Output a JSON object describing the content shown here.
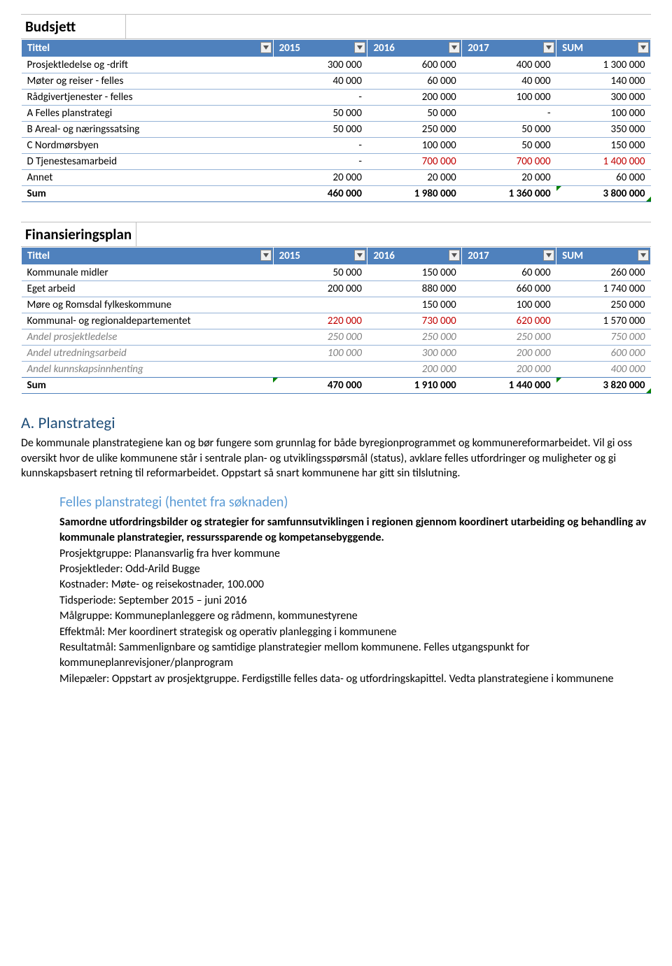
{
  "budget_table": {
    "title": "Budsjett",
    "columns": [
      "Tittel",
      "2015",
      "2016",
      "2017",
      "SUM"
    ],
    "col_pct": [
      "40%",
      "15%",
      "15%",
      "15%",
      "15%"
    ],
    "header_bg": "#4f81bd",
    "header_fg": "#ffffff",
    "row_border": "#95b3d7",
    "rows": [
      {
        "cells": [
          "Prosjektledelse og -drift",
          "300 000",
          "600 000",
          "400 000",
          "1 300 000"
        ]
      },
      {
        "cells": [
          "Møter og reiser - felles",
          "40 000",
          "60 000",
          "40 000",
          "140 000"
        ]
      },
      {
        "cells": [
          "Rådgivertjenester - felles",
          "-",
          "200 000",
          "100 000",
          "300 000"
        ]
      },
      {
        "cells": [
          "A Felles planstrategi",
          "50 000",
          "50 000",
          "-",
          "100 000"
        ]
      },
      {
        "cells": [
          "B Areal- og næringssatsing",
          "50 000",
          "250 000",
          "50 000",
          "350 000"
        ]
      },
      {
        "cells": [
          "C Nordmørsbyen",
          "-",
          "100 000",
          "50 000",
          "150 000"
        ]
      },
      {
        "cells": [
          "D Tjenestesamarbeid",
          "-",
          "700 000",
          "700 000",
          "1 400 000"
        ],
        "red_cols": [
          2,
          3,
          4
        ]
      },
      {
        "cells": [
          "Annet",
          "20 000",
          "20 000",
          "20 000",
          "60 000"
        ]
      },
      {
        "cells": [
          "Sum",
          "460 000",
          "1 980 000",
          "1 360 000",
          "3 800 000"
        ],
        "sum": true,
        "tri_br": 4
      }
    ]
  },
  "finance_table": {
    "title": "Finansieringsplan",
    "columns": [
      "Tittel",
      "2015",
      "2016",
      "2017",
      "SUM"
    ],
    "col_pct": [
      "40%",
      "15%",
      "15%",
      "15%",
      "15%"
    ],
    "header_bg": "#4f81bd",
    "header_fg": "#ffffff",
    "row_border": "#95b3d7",
    "rows": [
      {
        "cells": [
          "Kommunale midler",
          "50 000",
          "150 000",
          "60 000",
          "260 000"
        ]
      },
      {
        "cells": [
          "Eget arbeid",
          "200 000",
          "880 000",
          "660 000",
          "1 740 000"
        ]
      },
      {
        "cells": [
          "Møre og Romsdal fylkeskommune",
          "",
          "150 000",
          "100 000",
          "250 000"
        ]
      },
      {
        "cells": [
          "Kommunal- og regionaldepartementet",
          "220 000",
          "730 000",
          "620 000",
          "1 570 000"
        ],
        "red_cols": [
          1,
          2,
          3
        ]
      },
      {
        "cells": [
          "Andel prosjektledelse",
          "250 000",
          "250 000",
          "250 000",
          "750 000"
        ],
        "italic": true
      },
      {
        "cells": [
          "Andel utredningsarbeid",
          "100 000",
          "300 000",
          "200 000",
          "600 000"
        ],
        "italic": true
      },
      {
        "cells": [
          "Andel kunnskapsinnhenting",
          "",
          "200 000",
          "200 000",
          "400 000"
        ],
        "italic": true,
        "lastdata": true
      },
      {
        "cells": [
          "Sum",
          "470 000",
          "1 910 000",
          "1 440 000",
          "3 820 000"
        ],
        "sum": true,
        "tri_tl": 1,
        "tri_br": 4
      }
    ]
  },
  "section": {
    "heading": "A. Planstrategi",
    "para": "De kommunale planstrategiene kan og bør fungere som grunnlag for både byregionprogrammet og kommunereformarbeidet. Vil gi oss oversikt hvor de ulike kommunene står i sentrale plan- og utviklingsspørsmål (status), avklare felles utfordringer og muligheter og gi kunnskapsbasert retning til reformarbeidet. Oppstart så snart kommunene har gitt sin tilslutning.",
    "sub_heading": "Felles planstrategi (hentet fra søknaden)",
    "bold_intro": "Samordne utfordringsbilder og strategier for samfunnsutviklingen i regionen gjennom koordinert utarbeiding og behandling av kommunale planstrategier, ressurssparende og kompetansebyggende.",
    "lines": [
      "Prosjektgruppe: Planansvarlig fra hver kommune",
      "Prosjektleder: Odd-Arild Bugge",
      "Kostnader: Møte- og reisekostnader, 100.000",
      "Tidsperiode: September 2015 – juni 2016",
      "Målgruppe: Kommuneplanleggere og rådmenn, kommunestyrene",
      "Effektmål: Mer koordinert strategisk og operativ planlegging i kommunene",
      "Resultatmål: Sammenlignbare og samtidige planstrategier mellom kommunene. Felles utgangspunkt for kommuneplanrevisjoner/planprogram",
      "Milepæler: Oppstart av prosjektgruppe. Ferdigstille felles data- og utfordringskapittel. Vedta planstrategiene i kommunene"
    ]
  }
}
